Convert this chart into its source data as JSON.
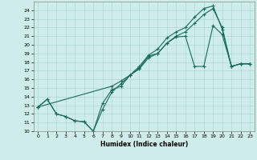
{
  "xlabel": "Humidex (Indice chaleur)",
  "xlim": [
    -0.5,
    23.5
  ],
  "ylim": [
    10,
    25
  ],
  "yticks": [
    10,
    11,
    12,
    13,
    14,
    15,
    16,
    17,
    18,
    19,
    20,
    21,
    22,
    23,
    24
  ],
  "xticks": [
    0,
    1,
    2,
    3,
    4,
    5,
    6,
    7,
    8,
    9,
    10,
    11,
    12,
    13,
    14,
    15,
    16,
    17,
    18,
    19,
    20,
    21,
    22,
    23
  ],
  "bg_color": "#cdecea",
  "line_color": "#1a6b5a",
  "grid_color": "#b0d8d4",
  "line1_x": [
    0,
    1,
    2,
    3,
    4,
    5,
    6,
    7,
    8,
    9,
    10,
    11,
    12,
    13,
    14,
    15,
    16,
    17,
    18,
    19,
    20,
    21,
    22,
    23
  ],
  "line1_y": [
    12.8,
    13.7,
    12.0,
    11.7,
    11.2,
    11.1,
    10.0,
    13.2,
    14.8,
    15.2,
    16.5,
    17.3,
    18.7,
    19.0,
    20.2,
    20.9,
    21.0,
    17.5,
    17.5,
    22.2,
    21.2,
    17.5,
    17.8,
    17.8
  ],
  "line2_x": [
    0,
    8,
    9,
    10,
    11,
    12,
    13,
    14,
    15,
    16,
    17,
    18,
    19,
    20,
    21,
    22,
    23
  ],
  "line2_y": [
    12.8,
    15.2,
    15.8,
    16.5,
    17.2,
    18.5,
    19.0,
    20.2,
    21.0,
    21.5,
    22.5,
    23.5,
    24.2,
    22.0,
    17.5,
    17.8,
    17.8
  ],
  "line3_x": [
    0,
    1,
    2,
    3,
    4,
    5,
    6,
    7,
    8,
    9,
    10,
    11,
    12,
    13,
    14,
    15,
    16,
    17,
    18,
    19,
    20,
    21,
    22,
    23
  ],
  "line3_y": [
    12.8,
    13.7,
    12.0,
    11.7,
    11.2,
    11.1,
    10.0,
    12.5,
    14.5,
    15.5,
    16.5,
    17.5,
    18.8,
    19.5,
    20.8,
    21.5,
    22.0,
    23.2,
    24.2,
    24.5,
    21.8,
    17.5,
    17.8,
    17.8
  ]
}
